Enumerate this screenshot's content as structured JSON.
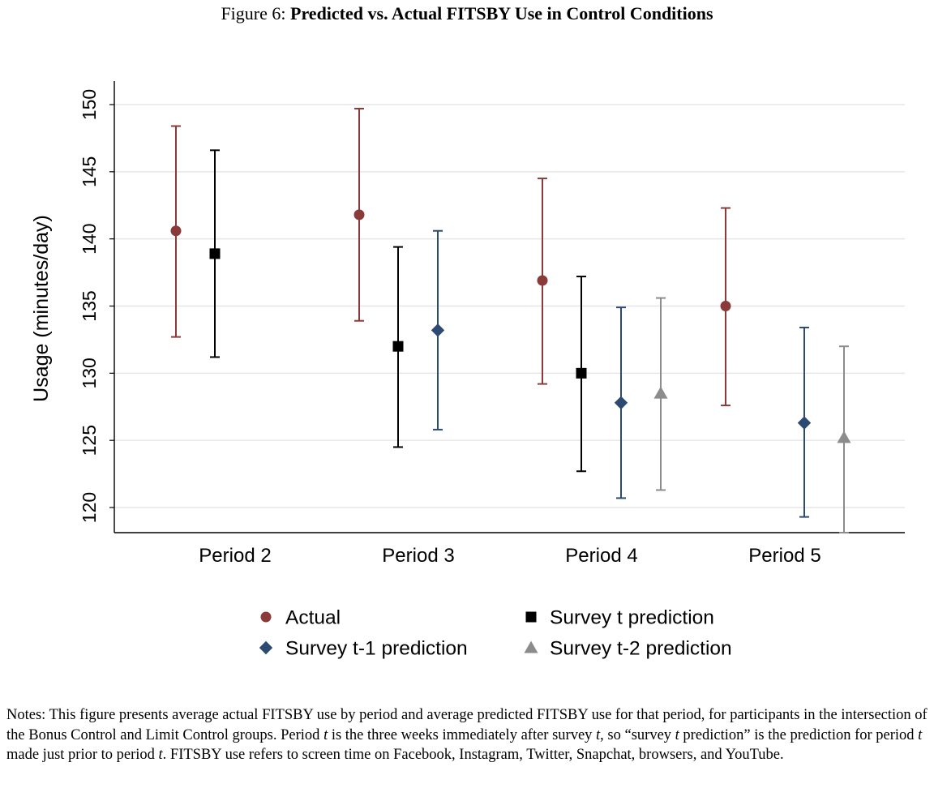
{
  "figure": {
    "label": "Figure 6:",
    "title": "Predicted vs. Actual FITSBY Use in Control Conditions"
  },
  "chart_data": {
    "type": "scatter",
    "ylabel": "Usage (minutes/day)",
    "xlabel": "",
    "ylim": [
      118,
      152
    ],
    "yticks": [
      120,
      125,
      130,
      135,
      140,
      145,
      150
    ],
    "grid": "horizontal",
    "legend_placement": "bottom",
    "categories": [
      "Period 2",
      "Period 3",
      "Period 4",
      "Period 5"
    ],
    "series": [
      {
        "name": "Actual",
        "marker": "circle",
        "color": "#8b3a3a",
        "points": [
          {
            "category": "Period 2",
            "value": 140.6,
            "ci_low": 132.7,
            "ci_high": 148.4
          },
          {
            "category": "Period 3",
            "value": 141.8,
            "ci_low": 133.9,
            "ci_high": 149.7
          },
          {
            "category": "Period 4",
            "value": 136.9,
            "ci_low": 129.2,
            "ci_high": 144.5
          },
          {
            "category": "Period 5",
            "value": 135.0,
            "ci_low": 127.6,
            "ci_high": 142.3
          }
        ]
      },
      {
        "name": "Survey t prediction",
        "marker": "square",
        "color": "#000000",
        "points": [
          {
            "category": "Period 2",
            "value": 138.9,
            "ci_low": 131.2,
            "ci_high": 146.6
          },
          {
            "category": "Period 3",
            "value": 132.0,
            "ci_low": 124.5,
            "ci_high": 139.4
          },
          {
            "category": "Period 4",
            "value": 130.0,
            "ci_low": 122.7,
            "ci_high": 137.2
          }
        ]
      },
      {
        "name": "Survey t-1 prediction",
        "marker": "diamond",
        "color": "#2c4a72",
        "points": [
          {
            "category": "Period 3",
            "value": 133.2,
            "ci_low": 125.8,
            "ci_high": 140.6
          },
          {
            "category": "Period 4",
            "value": 127.8,
            "ci_low": 120.7,
            "ci_high": 134.9
          },
          {
            "category": "Period 5",
            "value": 126.3,
            "ci_low": 119.3,
            "ci_high": 133.4
          }
        ]
      },
      {
        "name": "Survey t-2 prediction",
        "marker": "triangle",
        "color": "#8c8c8c",
        "points": [
          {
            "category": "Period 4",
            "value": 128.5,
            "ci_low": 121.3,
            "ci_high": 135.6
          },
          {
            "category": "Period 5",
            "value": 125.2,
            "ci_low": 118.1,
            "ci_high": 132.0
          }
        ]
      }
    ]
  },
  "notes": {
    "p1": "Notes: This figure presents average actual FITSBY use by period and average predicted FITSBY use for that period, for participants in the intersection of the Bonus Control and Limit Control groups. Period ",
    "t1": "t",
    "p2": " is the three weeks immediately after survey ",
    "t2": "t",
    "p3": ", so “survey ",
    "t3": "t",
    "p4": " prediction” is the prediction for period ",
    "t4": "t",
    "p5": " made just prior to period ",
    "t5": "t",
    "p6": ". FITSBY use refers to screen time on Facebook, Instagram, Twitter, Snapchat, browsers, and YouTube."
  }
}
